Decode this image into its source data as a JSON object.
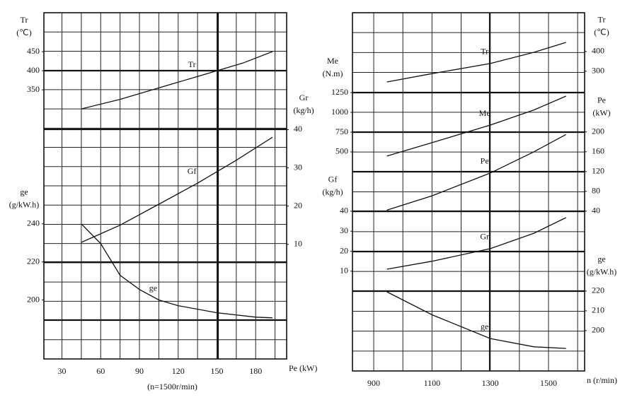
{
  "chart_data": [
    {
      "type": "line",
      "xlim": [
        16,
        204
      ],
      "xticks": [
        30,
        60,
        90,
        120,
        150,
        180
      ],
      "xlabel": "Pe (kW)",
      "note": "(n=1500r/min)",
      "axes": [
        {
          "name": "Tr",
          "unit": "(℃)",
          "side": "left",
          "ylim": [
            -355,
            552
          ],
          "yticks": [
            350,
            400,
            450
          ]
        },
        {
          "name": "Gr",
          "unit": "(kg/h)",
          "side": "right",
          "ylim": [
            -20,
            70.6
          ],
          "yticks": [
            10,
            20,
            30,
            40
          ]
        },
        {
          "name": "ge",
          "unit": "(g/kW.h)",
          "side": "left",
          "ylim": [
            169,
            351
          ],
          "yticks": [
            200,
            220,
            240
          ]
        }
      ],
      "series": [
        {
          "name": "Tr",
          "axis": 0,
          "color": "#111",
          "x": [
            45,
            75,
            105,
            135,
            150,
            170,
            193
          ],
          "values": [
            300,
            325,
            355,
            385,
            400,
            420,
            450
          ]
        },
        {
          "name": "Gf",
          "axis": 1,
          "color": "#111",
          "x": [
            45,
            75,
            105,
            135,
            165,
            193
          ],
          "values": [
            10.5,
            15,
            20.5,
            26,
            32,
            38
          ]
        },
        {
          "name": "ge",
          "axis": 2,
          "color": "#111",
          "x": [
            45,
            60,
            75,
            90,
            105,
            120,
            150,
            180,
            193
          ],
          "values": [
            240,
            229.6,
            213,
            205.5,
            200,
            197,
            193.3,
            191,
            190.6
          ]
        }
      ]
    },
    {
      "type": "line",
      "xlim": [
        827,
        1624
      ],
      "xticks": [
        900,
        1100,
        1300,
        1500
      ],
      "xlabel": "n (r/min)",
      "axes": [
        {
          "name": "Tr",
          "unit": "(℃)",
          "side": "right",
          "ylim": [
            -1215,
            596
          ],
          "yticks": [
            300,
            400
          ]
        },
        {
          "name": "Me",
          "unit": "(N.m)",
          "side": "left",
          "ylim": [
            -2268,
            2259
          ],
          "yticks": [
            500,
            750,
            1000,
            1250
          ]
        },
        {
          "name": "Pe",
          "unit": "(kW)",
          "side": "right",
          "ylim": [
            -283,
            441
          ],
          "yticks": [
            40,
            80,
            120,
            160,
            200
          ]
        },
        {
          "name": "Gf",
          "unit": "(kg/h)",
          "side": "left",
          "ylim": [
            -39.9,
            139.3
          ],
          "yticks": [
            10,
            20,
            30,
            40
          ]
        },
        {
          "name": "ge",
          "unit": "(g/kW.h)",
          "side": "right",
          "ylim": [
            179.6,
            360.7
          ],
          "yticks": [
            200,
            210,
            220
          ]
        }
      ],
      "series": [
        {
          "name": "Tr",
          "axis": 0,
          "color": "#111",
          "x": [
            945,
            1100,
            1300,
            1450,
            1560
          ],
          "values": [
            246,
            288,
            339,
            396,
            446
          ]
        },
        {
          "name": "Me",
          "axis": 1,
          "color": "#111",
          "x": [
            945,
            1100,
            1300,
            1450,
            1560
          ],
          "values": [
            447,
            617,
            839,
            1030,
            1205
          ]
        },
        {
          "name": "Pe",
          "axis": 2,
          "color": "#111",
          "x": [
            945,
            1100,
            1300,
            1450,
            1560
          ],
          "values": [
            42,
            71,
            117,
            160,
            195
          ]
        },
        {
          "name": "Gr",
          "axis": 3,
          "color": "#111",
          "x": [
            945,
            1100,
            1300,
            1450,
            1560
          ],
          "values": [
            11,
            15,
            21.3,
            29,
            36.8
          ]
        },
        {
          "name": "ge",
          "axis": 4,
          "color": "#111",
          "x": [
            945,
            1100,
            1300,
            1450,
            1560
          ],
          "values": [
            219.6,
            208,
            196,
            191.8,
            191
          ]
        }
      ]
    }
  ]
}
